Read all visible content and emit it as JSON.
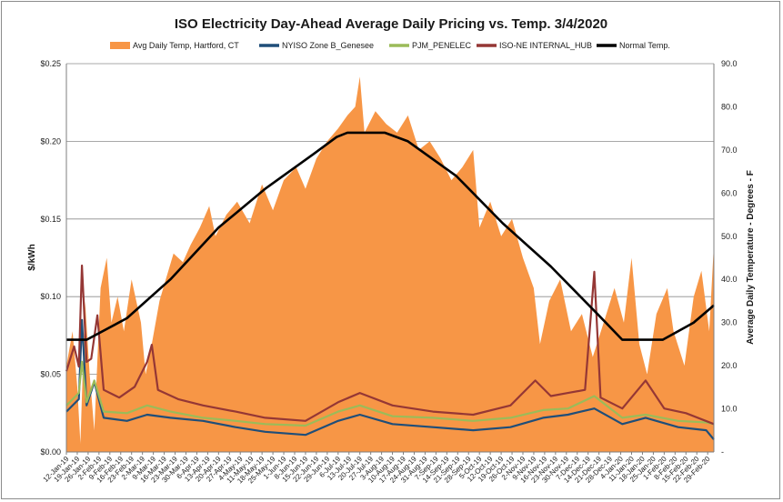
{
  "chart_data": {
    "type": "line",
    "title": "ISO Electricity Day-Ahead Average Daily Pricing vs. Temp. 3/4/2020",
    "ylabel": "$/kWh",
    "ylabel_right": "Average Daily Temperature - Degrees - F",
    "ylim": [
      0,
      0.25
    ],
    "ylim_right": [
      0,
      90
    ],
    "y_ticks": [
      "$0.00",
      "$0.05",
      "$0.10",
      "$0.15",
      "$0.20",
      "$0.25"
    ],
    "y_ticks_right": [
      "-",
      "10.0",
      "20.0",
      "30.0",
      "40.0",
      "50.0",
      "60.0",
      "70.0",
      "80.0",
      "90.0"
    ],
    "grid": "horizontal",
    "legend_position": "top",
    "x_start": "2019-01-12",
    "x_end": "2020-03-04",
    "x_tick_labels": [
      "12-Jan-19",
      "19-Jan-19",
      "26-Jan-19",
      "2-Feb-19",
      "9-Feb-19",
      "16-Feb-19",
      "23-Feb-19",
      "2-Mar-19",
      "9-Mar-19",
      "16-Mar-19",
      "23-Mar-19",
      "30-Mar-19",
      "6-Apr-19",
      "13-Apr-19",
      "20-Apr-19",
      "27-Apr-19",
      "4-May-19",
      "11-May-19",
      "18-May-19",
      "25-May-19",
      "1-Jun-19",
      "8-Jun-19",
      "15-Jun-19",
      "22-Jun-19",
      "29-Jun-19",
      "6-Jul-19",
      "13-Jul-19",
      "20-Jul-19",
      "27-Jul-19",
      "3-Aug-19",
      "10-Aug-19",
      "17-Aug-19",
      "24-Aug-19",
      "31-Aug-19",
      "7-Sep-19",
      "14-Sep-19",
      "21-Sep-19",
      "28-Sep-19",
      "5-Oct-19",
      "12-Oct-19",
      "19-Oct-19",
      "26-Oct-19",
      "2-Nov-19",
      "9-Nov-19",
      "16-Nov-19",
      "23-Nov-19",
      "30-Nov-19",
      "7-Dec-19",
      "14-Dec-19",
      "21-Dec-19",
      "28-Dec-19",
      "4-Jan-20",
      "11-Jan-20",
      "18-Jan-20",
      "25-Jan-20",
      "1-Feb-20",
      "8-Feb-20",
      "15-Feb-20",
      "22-Feb-20",
      "29-Feb-20"
    ],
    "series": [
      {
        "name": "Avg Daily Temp, Hartford, CT",
        "axis": "right",
        "kind": "area",
        "color": "#f79646",
        "points": [
          [
            "2019-01-12",
            20
          ],
          [
            "2019-01-16",
            28
          ],
          [
            "2019-01-19",
            15
          ],
          [
            "2019-01-21",
            2
          ],
          [
            "2019-01-24",
            35
          ],
          [
            "2019-01-27",
            18
          ],
          [
            "2019-01-30",
            5
          ],
          [
            "2019-02-03",
            38
          ],
          [
            "2019-02-07",
            45
          ],
          [
            "2019-02-10",
            30
          ],
          [
            "2019-02-14",
            36
          ],
          [
            "2019-02-18",
            28
          ],
          [
            "2019-02-23",
            40
          ],
          [
            "2019-03-01",
            30
          ],
          [
            "2019-03-04",
            18
          ],
          [
            "2019-03-08",
            25
          ],
          [
            "2019-03-13",
            35
          ],
          [
            "2019-03-17",
            40
          ],
          [
            "2019-03-22",
            46
          ],
          [
            "2019-03-28",
            44
          ],
          [
            "2019-04-02",
            48
          ],
          [
            "2019-04-08",
            52
          ],
          [
            "2019-04-14",
            57
          ],
          [
            "2019-04-18",
            50
          ],
          [
            "2019-04-25",
            55
          ],
          [
            "2019-05-02",
            58
          ],
          [
            "2019-05-10",
            53
          ],
          [
            "2019-05-18",
            62
          ],
          [
            "2019-05-25",
            56
          ],
          [
            "2019-06-01",
            63
          ],
          [
            "2019-06-09",
            66
          ],
          [
            "2019-06-15",
            61
          ],
          [
            "2019-06-22",
            68
          ],
          [
            "2019-06-29",
            72
          ],
          [
            "2019-07-06",
            75
          ],
          [
            "2019-07-12",
            78
          ],
          [
            "2019-07-17",
            80
          ],
          [
            "2019-07-20",
            87
          ],
          [
            "2019-07-23",
            74
          ],
          [
            "2019-07-30",
            79
          ],
          [
            "2019-08-06",
            76
          ],
          [
            "2019-08-13",
            74
          ],
          [
            "2019-08-20",
            78
          ],
          [
            "2019-08-27",
            70
          ],
          [
            "2019-09-03",
            72
          ],
          [
            "2019-09-10",
            68
          ],
          [
            "2019-09-17",
            63
          ],
          [
            "2019-09-24",
            66
          ],
          [
            "2019-10-01",
            70
          ],
          [
            "2019-10-05",
            52
          ],
          [
            "2019-10-12",
            58
          ],
          [
            "2019-10-19",
            50
          ],
          [
            "2019-10-26",
            54
          ],
          [
            "2019-11-02",
            45
          ],
          [
            "2019-11-09",
            38
          ],
          [
            "2019-11-13",
            25
          ],
          [
            "2019-11-19",
            35
          ],
          [
            "2019-11-26",
            40
          ],
          [
            "2019-12-03",
            28
          ],
          [
            "2019-12-10",
            32
          ],
          [
            "2019-12-17",
            22
          ],
          [
            "2019-12-24",
            30
          ],
          [
            "2019-12-31",
            38
          ],
          [
            "2020-01-06",
            30
          ],
          [
            "2020-01-11",
            45
          ],
          [
            "2020-01-16",
            25
          ],
          [
            "2020-01-21",
            18
          ],
          [
            "2020-01-27",
            32
          ],
          [
            "2020-02-03",
            38
          ],
          [
            "2020-02-07",
            28
          ],
          [
            "2020-02-14",
            20
          ],
          [
            "2020-02-20",
            36
          ],
          [
            "2020-02-25",
            42
          ],
          [
            "2020-03-01",
            28
          ],
          [
            "2020-03-04",
            48
          ]
        ]
      },
      {
        "name": "NYISO Zone B_Genesee",
        "axis": "left",
        "kind": "line",
        "color": "#1f4e79",
        "points": [
          [
            "2019-01-12",
            0.026
          ],
          [
            "2019-01-20",
            0.034
          ],
          [
            "2019-01-22",
            0.085
          ],
          [
            "2019-01-25",
            0.03
          ],
          [
            "2019-01-30",
            0.045
          ],
          [
            "2019-02-05",
            0.022
          ],
          [
            "2019-02-20",
            0.02
          ],
          [
            "2019-03-05",
            0.024
          ],
          [
            "2019-03-20",
            0.022
          ],
          [
            "2019-04-10",
            0.02
          ],
          [
            "2019-05-01",
            0.016
          ],
          [
            "2019-05-20",
            0.013
          ],
          [
            "2019-06-15",
            0.011
          ],
          [
            "2019-07-06",
            0.02
          ],
          [
            "2019-07-20",
            0.024
          ],
          [
            "2019-08-10",
            0.018
          ],
          [
            "2019-09-05",
            0.016
          ],
          [
            "2019-10-01",
            0.014
          ],
          [
            "2019-10-25",
            0.016
          ],
          [
            "2019-11-15",
            0.022
          ],
          [
            "2019-12-01",
            0.024
          ],
          [
            "2019-12-18",
            0.028
          ],
          [
            "2020-01-05",
            0.018
          ],
          [
            "2020-01-20",
            0.022
          ],
          [
            "2020-02-10",
            0.016
          ],
          [
            "2020-02-28",
            0.014
          ],
          [
            "2020-03-04",
            0.008
          ]
        ]
      },
      {
        "name": "PJM_PENELEC",
        "axis": "left",
        "kind": "line",
        "color": "#9bbb59",
        "points": [
          [
            "2019-01-12",
            0.03
          ],
          [
            "2019-01-20",
            0.038
          ],
          [
            "2019-01-22",
            0.058
          ],
          [
            "2019-01-25",
            0.032
          ],
          [
            "2019-01-30",
            0.046
          ],
          [
            "2019-02-05",
            0.026
          ],
          [
            "2019-02-20",
            0.025
          ],
          [
            "2019-03-05",
            0.03
          ],
          [
            "2019-03-20",
            0.026
          ],
          [
            "2019-04-10",
            0.022
          ],
          [
            "2019-05-01",
            0.02
          ],
          [
            "2019-05-20",
            0.018
          ],
          [
            "2019-06-15",
            0.017
          ],
          [
            "2019-07-06",
            0.026
          ],
          [
            "2019-07-20",
            0.03
          ],
          [
            "2019-08-10",
            0.023
          ],
          [
            "2019-09-05",
            0.022
          ],
          [
            "2019-10-01",
            0.02
          ],
          [
            "2019-10-25",
            0.022
          ],
          [
            "2019-11-15",
            0.027
          ],
          [
            "2019-12-01",
            0.028
          ],
          [
            "2019-12-18",
            0.036
          ],
          [
            "2020-01-05",
            0.022
          ],
          [
            "2020-01-20",
            0.024
          ],
          [
            "2020-02-10",
            0.02
          ],
          [
            "2020-02-28",
            0.019
          ],
          [
            "2020-03-04",
            0.018
          ]
        ]
      },
      {
        "name": "ISO-NE INTERNAL_HUB",
        "axis": "left",
        "kind": "line",
        "color": "#953735",
        "points": [
          [
            "2019-01-12",
            0.052
          ],
          [
            "2019-01-17",
            0.068
          ],
          [
            "2019-01-20",
            0.055
          ],
          [
            "2019-01-22",
            0.12
          ],
          [
            "2019-01-25",
            0.058
          ],
          [
            "2019-01-28",
            0.06
          ],
          [
            "2019-02-01",
            0.088
          ],
          [
            "2019-02-05",
            0.04
          ],
          [
            "2019-02-15",
            0.035
          ],
          [
            "2019-02-25",
            0.042
          ],
          [
            "2019-03-05",
            0.058
          ],
          [
            "2019-03-08",
            0.069
          ],
          [
            "2019-03-12",
            0.04
          ],
          [
            "2019-03-25",
            0.034
          ],
          [
            "2019-04-10",
            0.03
          ],
          [
            "2019-05-01",
            0.026
          ],
          [
            "2019-05-20",
            0.022
          ],
          [
            "2019-06-15",
            0.02
          ],
          [
            "2019-07-06",
            0.032
          ],
          [
            "2019-07-20",
            0.038
          ],
          [
            "2019-08-10",
            0.03
          ],
          [
            "2019-09-05",
            0.026
          ],
          [
            "2019-10-01",
            0.024
          ],
          [
            "2019-10-25",
            0.03
          ],
          [
            "2019-11-10",
            0.046
          ],
          [
            "2019-11-20",
            0.036
          ],
          [
            "2019-12-01",
            0.038
          ],
          [
            "2019-12-12",
            0.04
          ],
          [
            "2019-12-18",
            0.116
          ],
          [
            "2019-12-22",
            0.035
          ],
          [
            "2020-01-05",
            0.028
          ],
          [
            "2020-01-20",
            0.046
          ],
          [
            "2020-02-01",
            0.028
          ],
          [
            "2020-02-15",
            0.025
          ],
          [
            "2020-03-04",
            0.018
          ]
        ]
      },
      {
        "name": "Normal Temp.",
        "axis": "right",
        "kind": "line",
        "color": "#000000",
        "points": [
          [
            "2019-01-12",
            26
          ],
          [
            "2019-01-25",
            26
          ],
          [
            "2019-02-20",
            31
          ],
          [
            "2019-03-20",
            40
          ],
          [
            "2019-04-20",
            52
          ],
          [
            "2019-05-20",
            61
          ],
          [
            "2019-06-20",
            69
          ],
          [
            "2019-07-05",
            73
          ],
          [
            "2019-07-12",
            74
          ],
          [
            "2019-08-05",
            74
          ],
          [
            "2019-08-20",
            72
          ],
          [
            "2019-09-20",
            64
          ],
          [
            "2019-10-20",
            53
          ],
          [
            "2019-11-20",
            43
          ],
          [
            "2019-12-20",
            32
          ],
          [
            "2020-01-05",
            26
          ],
          [
            "2020-01-31",
            26
          ],
          [
            "2020-02-20",
            30
          ],
          [
            "2020-03-04",
            34
          ]
        ]
      }
    ]
  }
}
